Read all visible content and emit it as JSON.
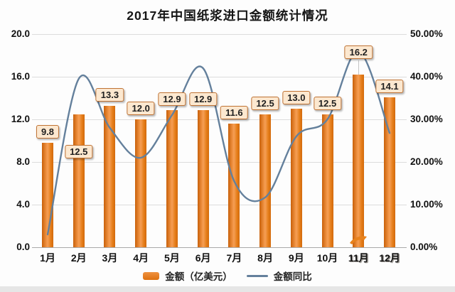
{
  "title": "2017年中国纸浆进口金额统计情况",
  "legend": {
    "bar_label": "金额（亿美元）",
    "line_label": "金额同比"
  },
  "colors": {
    "bar_main": "#e07413",
    "bar_highlight": "#f59e55",
    "line": "#64809c",
    "label_box_bg": "#fce8d0",
    "label_box_border": "#bf7233",
    "grid": "#dcdcdc",
    "axis": "#aaaaaa",
    "text": "#1f1f1f",
    "watermark_orange": "#e8821d"
  },
  "chart_data": {
    "type": "bar",
    "combo": "bar+line",
    "title": "2017年中国纸浆进口金额统计情况",
    "categories": [
      "1月",
      "2月",
      "3月",
      "4月",
      "5月",
      "6月",
      "7月",
      "8月",
      "9月",
      "10月",
      "11月",
      "12月"
    ],
    "series": [
      {
        "name": "金额（亿美元）",
        "type": "bar",
        "axis": "left",
        "values": [
          9.8,
          12.5,
          13.3,
          12.0,
          12.9,
          12.9,
          11.6,
          12.5,
          13.0,
          12.5,
          16.2,
          14.1
        ],
        "value_labels": [
          "9.8",
          "12.5",
          "13.3",
          "12.0",
          "12.9",
          "12.9",
          "11.6",
          "12.5",
          "13.0",
          "12.5",
          "16.2",
          "14.1"
        ]
      },
      {
        "name": "金额同比",
        "type": "line",
        "axis": "right",
        "unit": "%",
        "values": [
          3.0,
          39.5,
          28.0,
          21.0,
          31.0,
          42.0,
          15.5,
          11.7,
          26.0,
          30.0,
          46.0,
          26.8
        ]
      }
    ],
    "left_axis": {
      "ticks": [
        "20.0",
        "16.0",
        "12.0",
        "8.0",
        "4.0",
        "0.0"
      ],
      "range": [
        0,
        20
      ]
    },
    "right_axis": {
      "ticks": [
        "50.00%",
        "40.00%",
        "30.00%",
        "20.00%",
        "10.00%",
        "0.00%"
      ],
      "range": [
        0,
        50
      ]
    },
    "xlabel": "",
    "ylabel": "",
    "grid": true,
    "legend_position": "bottom"
  }
}
